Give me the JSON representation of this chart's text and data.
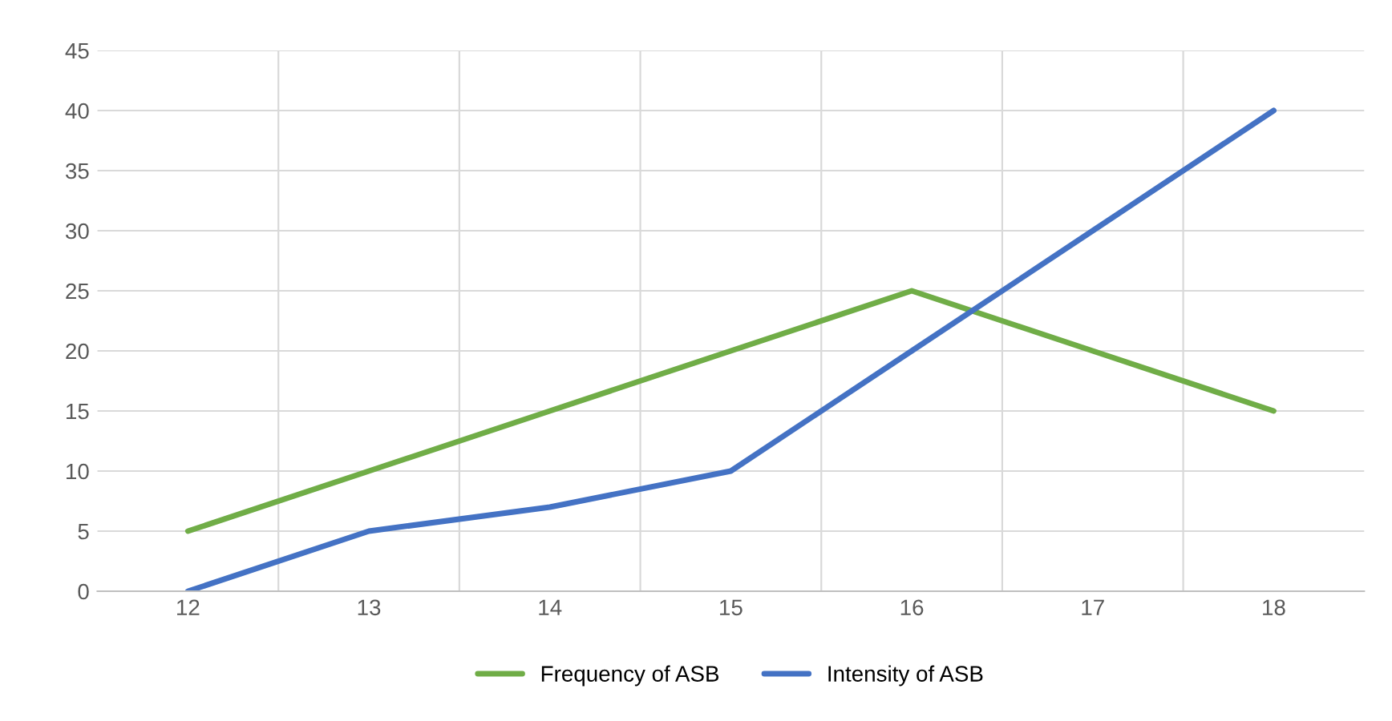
{
  "chart_data": {
    "type": "line",
    "categories": [
      "12",
      "13",
      "14",
      "15",
      "16",
      "17",
      "18"
    ],
    "series": [
      {
        "name": "Frequency of ASB",
        "color": "#70ad47",
        "values": [
          5,
          10,
          15,
          20,
          25,
          20,
          15
        ]
      },
      {
        "name": "Intensity of ASB",
        "color": "#4472c4",
        "values": [
          0,
          5,
          7,
          10,
          20,
          30,
          40
        ]
      }
    ],
    "ylim": [
      0,
      45
    ],
    "yticks": [
      0,
      5,
      10,
      15,
      20,
      25,
      30,
      35,
      40,
      45
    ],
    "grid": true,
    "legend": "bottom",
    "marker": "none",
    "line_style": "solid"
  }
}
